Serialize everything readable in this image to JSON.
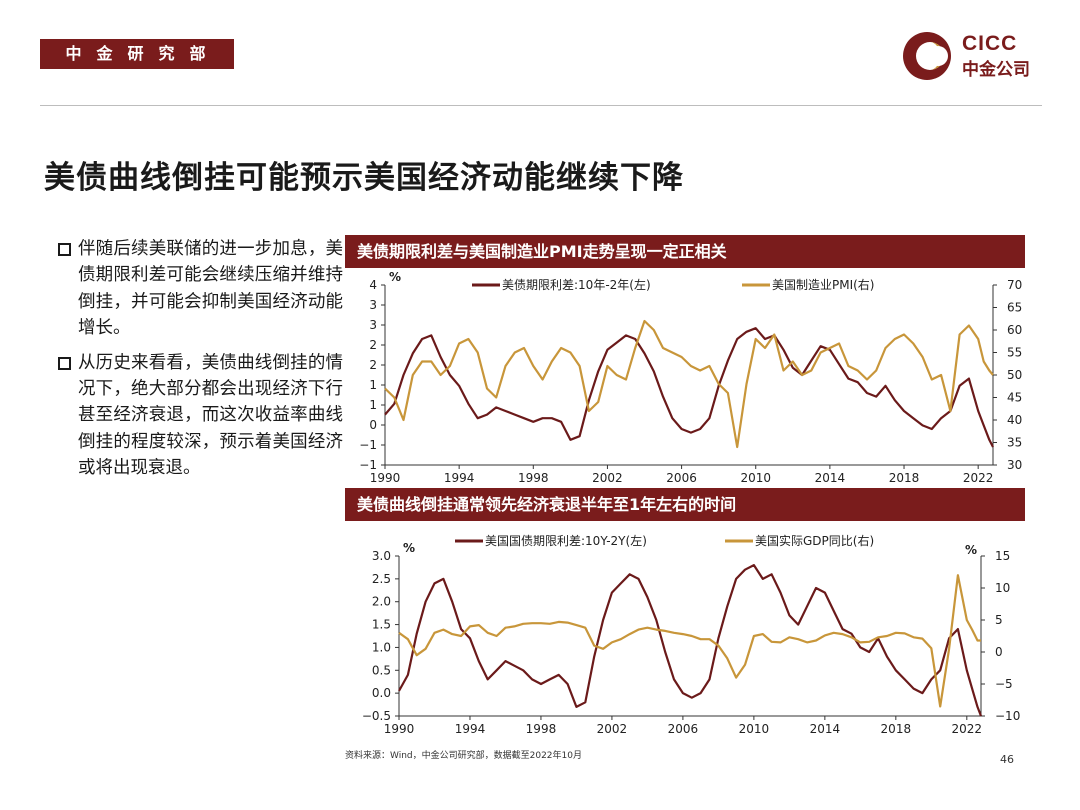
{
  "header": {
    "department": "中金研究部",
    "logo_en": "CICC",
    "logo_cn": "中金公司",
    "brand_color": "#7a1c1c"
  },
  "slide": {
    "title": "美债曲线倒挂可能预示美国经济动能继续下降",
    "bullets": [
      "伴随后续美联储的进一步加息，美债期限利差可能会继续压缩并维持倒挂，并可能会抑制美国经济动能增长。",
      "从历史来看看，美债曲线倒挂的情况下，绝大部分都会出现经济下行甚至经济衰退，而这次收益率曲线倒挂的程度较深，预示着美国经济或将出现衰退。"
    ],
    "source": "资料来源：Wind，中金公司研究部，数据截至2022年10月",
    "page_number": "46"
  },
  "colors": {
    "spread": "#6b1a1a",
    "secondary": "#c8963a"
  },
  "chart_data": [
    {
      "type": "line",
      "title": "美债期限利差与美国制造业PMI走势呈现一定正相关",
      "left_unit": "%",
      "left_ylim": [
        -1,
        4
      ],
      "left_ticks": [
        "4",
        "3",
        "3",
        "2",
        "2",
        "1",
        "1",
        "0",
        "−1",
        "−1"
      ],
      "right_ylim": [
        30,
        70
      ],
      "right_ticks": [
        "70",
        "65",
        "60",
        "55",
        "50",
        "45",
        "40",
        "35",
        "30"
      ],
      "x_ticks": [
        "1990",
        "1994",
        "1998",
        "2002",
        "2006",
        "2010",
        "2014",
        "2018",
        "2022"
      ],
      "xlim": [
        1990,
        2022.8
      ],
      "series": [
        {
          "name": "美债期限利差:10年-2年(左)",
          "axis": "left",
          "x": [
            1990,
            1990.5,
            1991,
            1991.5,
            1992,
            1992.5,
            1993,
            1993.5,
            1994,
            1994.5,
            1995,
            1995.5,
            1996,
            1996.5,
            1997,
            1997.5,
            1998,
            1998.5,
            1999,
            1999.5,
            2000,
            2000.5,
            2001,
            2001.5,
            2002,
            2002.5,
            2003,
            2003.5,
            2004,
            2004.5,
            2005,
            2005.5,
            2006,
            2006.5,
            2007,
            2007.5,
            2008,
            2008.5,
            2009,
            2009.5,
            2010,
            2010.5,
            2011,
            2011.5,
            2012,
            2012.5,
            2013,
            2013.5,
            2014,
            2014.5,
            2015,
            2015.5,
            2016,
            2016.5,
            2017,
            2017.5,
            2018,
            2018.5,
            2019,
            2019.5,
            2020,
            2020.5,
            2021,
            2021.5,
            2022,
            2022.3,
            2022.6,
            2022.8
          ],
          "values": [
            0.4,
            0.7,
            1.5,
            2.1,
            2.5,
            2.6,
            2.0,
            1.5,
            1.2,
            0.7,
            0.3,
            0.4,
            0.6,
            0.5,
            0.4,
            0.3,
            0.2,
            0.3,
            0.3,
            0.2,
            -0.3,
            -0.2,
            0.8,
            1.6,
            2.2,
            2.4,
            2.6,
            2.5,
            2.1,
            1.6,
            0.9,
            0.3,
            0.0,
            -0.1,
            0.0,
            0.3,
            1.2,
            1.9,
            2.5,
            2.7,
            2.8,
            2.5,
            2.6,
            2.2,
            1.7,
            1.5,
            1.9,
            2.3,
            2.2,
            1.8,
            1.4,
            1.3,
            1.0,
            0.9,
            1.2,
            0.8,
            0.5,
            0.3,
            0.1,
            0.0,
            0.3,
            0.5,
            1.2,
            1.4,
            0.5,
            0.1,
            -0.3,
            -0.5
          ]
        },
        {
          "name": "美国制造业PMI(右)",
          "axis": "right",
          "x": [
            1990,
            1990.5,
            1991,
            1991.5,
            1992,
            1992.5,
            1993,
            1993.5,
            1994,
            1994.5,
            1995,
            1995.5,
            1996,
            1996.5,
            1997,
            1997.5,
            1998,
            1998.5,
            1999,
            1999.5,
            2000,
            2000.5,
            2001,
            2001.5,
            2002,
            2002.5,
            2003,
            2003.5,
            2004,
            2004.5,
            2005,
            2005.5,
            2006,
            2006.5,
            2007,
            2007.5,
            2008,
            2008.5,
            2009,
            2009.5,
            2010,
            2010.5,
            2011,
            2011.5,
            2012,
            2012.5,
            2013,
            2013.5,
            2014,
            2014.5,
            2015,
            2015.5,
            2016,
            2016.5,
            2017,
            2017.5,
            2018,
            2018.5,
            2019,
            2019.5,
            2020,
            2020.5,
            2021,
            2021.5,
            2022,
            2022.3,
            2022.6,
            2022.8
          ],
          "values": [
            47,
            45,
            40,
            50,
            53,
            53,
            50,
            52,
            57,
            58,
            55,
            47,
            45,
            52,
            55,
            56,
            52,
            49,
            53,
            56,
            55,
            52,
            42,
            44,
            52,
            50,
            49,
            56,
            62,
            60,
            56,
            55,
            54,
            52,
            51,
            52,
            48,
            46,
            34,
            48,
            58,
            56,
            59,
            51,
            53,
            50,
            51,
            55,
            56,
            57,
            52,
            51,
            49,
            51,
            56,
            58,
            59,
            57,
            54,
            49,
            50,
            42,
            59,
            61,
            58,
            53,
            51,
            50
          ]
        }
      ]
    },
    {
      "type": "line",
      "title": "美债曲线倒挂通常领先经济衰退半年至1年左右的时间",
      "left_unit": "%",
      "right_unit": "%",
      "left_ylim": [
        -0.5,
        3.0
      ],
      "left_ticks": [
        "3.0",
        "2.5",
        "2.0",
        "1.5",
        "1.0",
        "0.5",
        "0.0",
        "−0.5"
      ],
      "right_ylim": [
        -10,
        15
      ],
      "right_ticks": [
        "15",
        "10",
        "5",
        "0",
        "−5",
        "−10"
      ],
      "x_ticks": [
        "1990",
        "1994",
        "1998",
        "2002",
        "2006",
        "2010",
        "2014",
        "2018",
        "2022"
      ],
      "xlim": [
        1990,
        2022.8
      ],
      "series": [
        {
          "name": "美国国债期限利差:10Y-2Y(左)",
          "axis": "left",
          "x": [
            1990,
            1990.5,
            1991,
            1991.5,
            1992,
            1992.5,
            1993,
            1993.5,
            1994,
            1994.5,
            1995,
            1995.5,
            1996,
            1996.5,
            1997,
            1997.5,
            1998,
            1998.5,
            1999,
            1999.5,
            2000,
            2000.5,
            2001,
            2001.5,
            2002,
            2002.5,
            2003,
            2003.5,
            2004,
            2004.5,
            2005,
            2005.5,
            2006,
            2006.5,
            2007,
            2007.5,
            2008,
            2008.5,
            2009,
            2009.5,
            2010,
            2010.5,
            2011,
            2011.5,
            2012,
            2012.5,
            2013,
            2013.5,
            2014,
            2014.5,
            2015,
            2015.5,
            2016,
            2016.5,
            2017,
            2017.5,
            2018,
            2018.5,
            2019,
            2019.5,
            2020,
            2020.5,
            2021,
            2021.5,
            2022,
            2022.3,
            2022.6,
            2022.8
          ],
          "values": [
            0.05,
            0.4,
            1.3,
            2.0,
            2.4,
            2.5,
            2.0,
            1.4,
            1.2,
            0.7,
            0.3,
            0.5,
            0.7,
            0.6,
            0.5,
            0.3,
            0.2,
            0.3,
            0.4,
            0.2,
            -0.3,
            -0.2,
            0.8,
            1.6,
            2.2,
            2.4,
            2.6,
            2.5,
            2.1,
            1.6,
            0.9,
            0.3,
            0.0,
            -0.1,
            0.0,
            0.3,
            1.2,
            1.9,
            2.5,
            2.7,
            2.8,
            2.5,
            2.6,
            2.2,
            1.7,
            1.5,
            1.9,
            2.3,
            2.2,
            1.8,
            1.4,
            1.3,
            1.0,
            0.9,
            1.2,
            0.8,
            0.5,
            0.3,
            0.1,
            0.0,
            0.3,
            0.5,
            1.2,
            1.4,
            0.5,
            0.1,
            -0.3,
            -0.5
          ]
        },
        {
          "name": "美国实际GDP同比(右)",
          "axis": "right",
          "x": [
            1990,
            1990.5,
            1991,
            1991.5,
            1992,
            1992.5,
            1993,
            1993.5,
            1994,
            1994.5,
            1995,
            1995.5,
            1996,
            1996.5,
            1997,
            1997.5,
            1998,
            1998.5,
            1999,
            1999.5,
            2000,
            2000.5,
            2001,
            2001.5,
            2002,
            2002.5,
            2003,
            2003.5,
            2004,
            2004.5,
            2005,
            2005.5,
            2006,
            2006.5,
            2007,
            2007.5,
            2008,
            2008.5,
            2009,
            2009.5,
            2010,
            2010.5,
            2011,
            2011.5,
            2012,
            2012.5,
            2013,
            2013.5,
            2014,
            2014.5,
            2015,
            2015.5,
            2016,
            2016.5,
            2017,
            2017.5,
            2018,
            2018.5,
            2019,
            2019.5,
            2020,
            2020.5,
            2021,
            2021.5,
            2022,
            2022.3,
            2022.6,
            2022.8
          ],
          "values": [
            3.0,
            2.0,
            -0.5,
            0.5,
            3.0,
            3.5,
            2.8,
            2.5,
            4.0,
            4.2,
            3.0,
            2.5,
            3.8,
            4.0,
            4.4,
            4.5,
            4.5,
            4.4,
            4.7,
            4.6,
            4.2,
            3.8,
            1.0,
            0.5,
            1.5,
            2.0,
            2.8,
            3.5,
            3.8,
            3.5,
            3.3,
            3.0,
            2.8,
            2.5,
            2.0,
            2.0,
            1.0,
            -1.0,
            -4.0,
            -2.0,
            2.5,
            2.8,
            1.6,
            1.5,
            2.3,
            2.0,
            1.5,
            1.8,
            2.6,
            3.0,
            2.8,
            2.3,
            1.5,
            1.6,
            2.3,
            2.5,
            3.0,
            2.9,
            2.3,
            2.1,
            0.6,
            -8.5,
            0.5,
            12.0,
            5.0,
            3.5,
            1.8,
            1.8
          ]
        }
      ]
    }
  ]
}
